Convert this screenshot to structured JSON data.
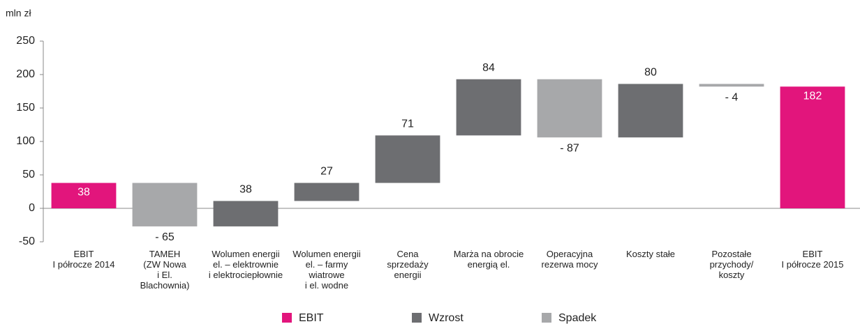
{
  "chart_data": {
    "type": "waterfall",
    "unit_label": "mln zł",
    "categories": [
      "EBIT\nI półrocze 2014",
      "TAMEH\n(ZW Nowa\ni El.\nBlachownia)",
      "Wolumen energii\nel. – elektrownie\ni elektrociepłownie",
      "Wolumen energii\nel. – farmy\nwiatrowe\ni el. wodne",
      "Cena\nsprzedaży\nenergii",
      "Marża na obrocie\nenergią el.",
      "Operacyjna\nrezerwa mocy",
      "Koszty stałe",
      "Pozostałe\nprzychody/\nkoszty",
      "EBIT\nI półrocze 2015"
    ],
    "values": [
      38,
      -65,
      38,
      27,
      71,
      84,
      -87,
      80,
      -4,
      182
    ],
    "value_labels": [
      "38",
      "- 65",
      "38",
      "27",
      "71",
      "84",
      "- 87",
      "80",
      "- 4",
      "182"
    ],
    "totals": [
      true,
      false,
      false,
      false,
      false,
      false,
      false,
      false,
      false,
      true
    ],
    "series": [
      {
        "name": "EBIT",
        "color": "#e2157c"
      },
      {
        "name": "Wzrost",
        "color": "#6d6e71"
      },
      {
        "name": "Spadek",
        "color": "#a7a8aa"
      }
    ],
    "ylim": [
      -50,
      250
    ],
    "yticks": [
      -50,
      0,
      50,
      100,
      150,
      200,
      250
    ]
  }
}
